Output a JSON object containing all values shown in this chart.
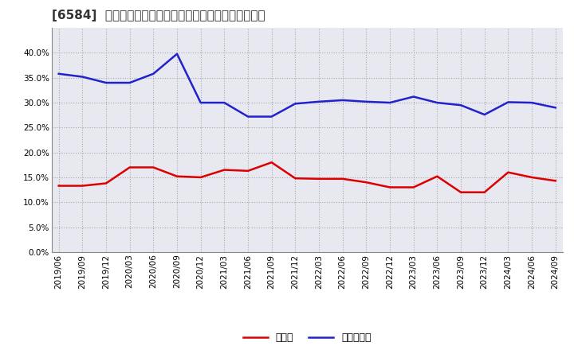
{
  "title": "[6584]  現預金、有利子負債の総資産に対する比率の推移",
  "x_labels": [
    "2019/06",
    "2019/09",
    "2019/12",
    "2020/03",
    "2020/06",
    "2020/09",
    "2020/12",
    "2021/03",
    "2021/06",
    "2021/09",
    "2021/12",
    "2022/03",
    "2022/06",
    "2022/09",
    "2022/12",
    "2023/03",
    "2023/06",
    "2023/09",
    "2023/12",
    "2024/03",
    "2024/06",
    "2024/09"
  ],
  "cash": [
    0.133,
    0.133,
    0.138,
    0.17,
    0.17,
    0.152,
    0.15,
    0.165,
    0.163,
    0.18,
    0.148,
    0.147,
    0.147,
    0.14,
    0.13,
    0.13,
    0.152,
    0.12,
    0.12,
    0.16,
    0.15,
    0.143
  ],
  "debt": [
    0.358,
    0.352,
    0.34,
    0.34,
    0.358,
    0.398,
    0.3,
    0.3,
    0.272,
    0.272,
    0.298,
    0.302,
    0.305,
    0.302,
    0.3,
    0.312,
    0.3,
    0.295,
    0.276,
    0.301,
    0.3,
    0.29
  ],
  "cash_color": "#dd0000",
  "debt_color": "#2222cc",
  "cash_label": "現預金",
  "debt_label": "有利子負債",
  "ylim": [
    0.0,
    0.45
  ],
  "yticks": [
    0.0,
    0.05,
    0.1,
    0.15,
    0.2,
    0.25,
    0.3,
    0.35,
    0.4
  ],
  "background_color": "#ffffff",
  "plot_bg_color": "#e8e8f0",
  "grid_color": "#999999",
  "title_fontsize": 11,
  "axis_fontsize": 7.5,
  "legend_fontsize": 9
}
